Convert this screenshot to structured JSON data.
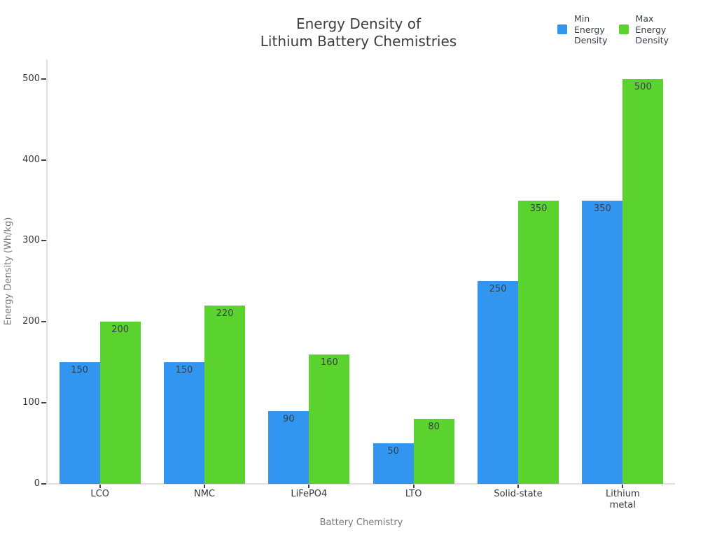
{
  "figure": {
    "title": "Energy Density of\nLithium Battery Chemistries"
  },
  "legend": {
    "items": [
      {
        "label": "Min\nEnergy\nDensity",
        "color": "#3295F0"
      },
      {
        "label": "Max\nEnergy\nDensity",
        "color": "#5BD32E"
      }
    ]
  },
  "axes": {
    "x_title": "Battery Chemistry",
    "y_title": "Energy Density (Wh/kg)"
  },
  "chart_data": {
    "type": "bar",
    "title": "Energy Density of Lithium Battery Chemistries",
    "categories": [
      "LCO",
      "NMC",
      "LiFePO4",
      "LTO",
      "Solid-state",
      "Lithium\nmetal"
    ],
    "series": [
      {
        "name": "Min Energy Density",
        "color": "#3295F0",
        "values": [
          150,
          150,
          90,
          50,
          250,
          350
        ]
      },
      {
        "name": "Max Energy Density",
        "color": "#5BD32E",
        "values": [
          200,
          220,
          160,
          80,
          350,
          500
        ]
      }
    ],
    "xlabel": "Battery Chemistry",
    "ylabel": "Energy Density (Wh/kg)",
    "ylim": [
      0,
      524
    ],
    "yticks": [
      0,
      100,
      200,
      300,
      400,
      500
    ],
    "grid": false,
    "legend_position": "top-right",
    "bar_value_labels": "inside-top",
    "bar_label_color": "#36404a"
  }
}
